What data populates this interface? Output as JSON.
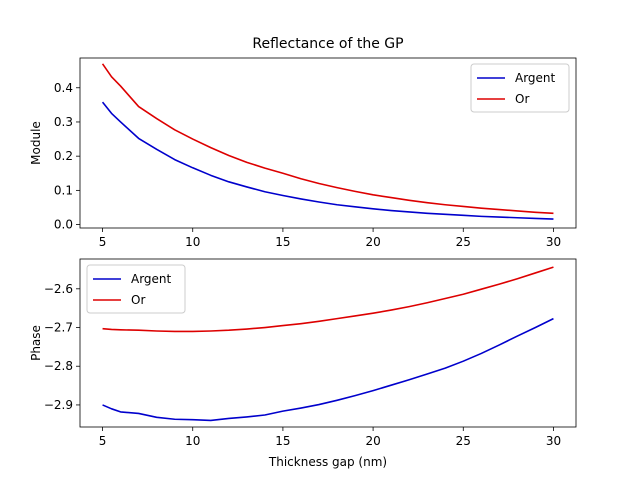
{
  "chart_data": [
    {
      "type": "line",
      "title": "Reflectance of the GP",
      "xlabel": "",
      "ylabel": "Module",
      "xlim": [
        3.75,
        31.25
      ],
      "ylim": [
        -0.01,
        0.487
      ],
      "xticks": [
        5,
        10,
        15,
        20,
        25,
        30
      ],
      "yticks": [
        0.0,
        0.1,
        0.2,
        0.3,
        0.4
      ],
      "ytick_labels": [
        "0.0",
        "0.1",
        "0.2",
        "0.3",
        "0.4"
      ],
      "legend": "top-right",
      "grid": false,
      "x": [
        5,
        5.5,
        6,
        7,
        8,
        9,
        10,
        11,
        12,
        13,
        14,
        15,
        16,
        17,
        18,
        19,
        20,
        21,
        22,
        23,
        24,
        25,
        26,
        27,
        28,
        29,
        30
      ],
      "series": [
        {
          "name": "Argent",
          "color": "#0000cc",
          "values": [
            0.358,
            0.325,
            0.3,
            0.252,
            0.22,
            0.19,
            0.166,
            0.144,
            0.125,
            0.11,
            0.096,
            0.085,
            0.075,
            0.066,
            0.058,
            0.052,
            0.046,
            0.041,
            0.037,
            0.033,
            0.03,
            0.027,
            0.024,
            0.022,
            0.02,
            0.018,
            0.016
          ]
        },
        {
          "name": "Or",
          "color": "#dd0000",
          "values": [
            0.47,
            0.432,
            0.405,
            0.345,
            0.31,
            0.277,
            0.25,
            0.225,
            0.202,
            0.182,
            0.165,
            0.15,
            0.134,
            0.12,
            0.108,
            0.097,
            0.087,
            0.079,
            0.071,
            0.064,
            0.058,
            0.053,
            0.048,
            0.044,
            0.04,
            0.036,
            0.033
          ]
        }
      ]
    },
    {
      "type": "line",
      "title": "",
      "xlabel": "Thickness gap (nm)",
      "ylabel": "Phase",
      "xlim": [
        3.75,
        31.25
      ],
      "ylim": [
        -2.957,
        -2.523
      ],
      "xticks": [
        5,
        10,
        15,
        20,
        25,
        30
      ],
      "yticks": [
        -2.9,
        -2.8,
        -2.7,
        -2.6
      ],
      "ytick_labels": [
        "−2.9",
        "−2.8",
        "−2.7",
        "−2.6"
      ],
      "legend": "top-left",
      "grid": false,
      "x": [
        5,
        5.5,
        6,
        7,
        8,
        9,
        10,
        11,
        12,
        13,
        14,
        15,
        16,
        17,
        18,
        19,
        20,
        21,
        22,
        23,
        24,
        25,
        26,
        27,
        28,
        29,
        30
      ],
      "series": [
        {
          "name": "Argent",
          "color": "#0000cc",
          "values": [
            -2.9,
            -2.91,
            -2.918,
            -2.922,
            -2.932,
            -2.937,
            -2.938,
            -2.94,
            -2.935,
            -2.931,
            -2.926,
            -2.916,
            -2.908,
            -2.899,
            -2.888,
            -2.876,
            -2.863,
            -2.849,
            -2.835,
            -2.82,
            -2.805,
            -2.787,
            -2.767,
            -2.745,
            -2.722,
            -2.7,
            -2.677
          ]
        },
        {
          "name": "Or",
          "color": "#dd0000",
          "values": [
            -2.703,
            -2.705,
            -2.706,
            -2.707,
            -2.709,
            -2.71,
            -2.71,
            -2.709,
            -2.707,
            -2.704,
            -2.7,
            -2.695,
            -2.69,
            -2.684,
            -2.677,
            -2.67,
            -2.663,
            -2.655,
            -2.646,
            -2.636,
            -2.625,
            -2.614,
            -2.601,
            -2.588,
            -2.574,
            -2.559,
            -2.544
          ]
        }
      ]
    }
  ]
}
